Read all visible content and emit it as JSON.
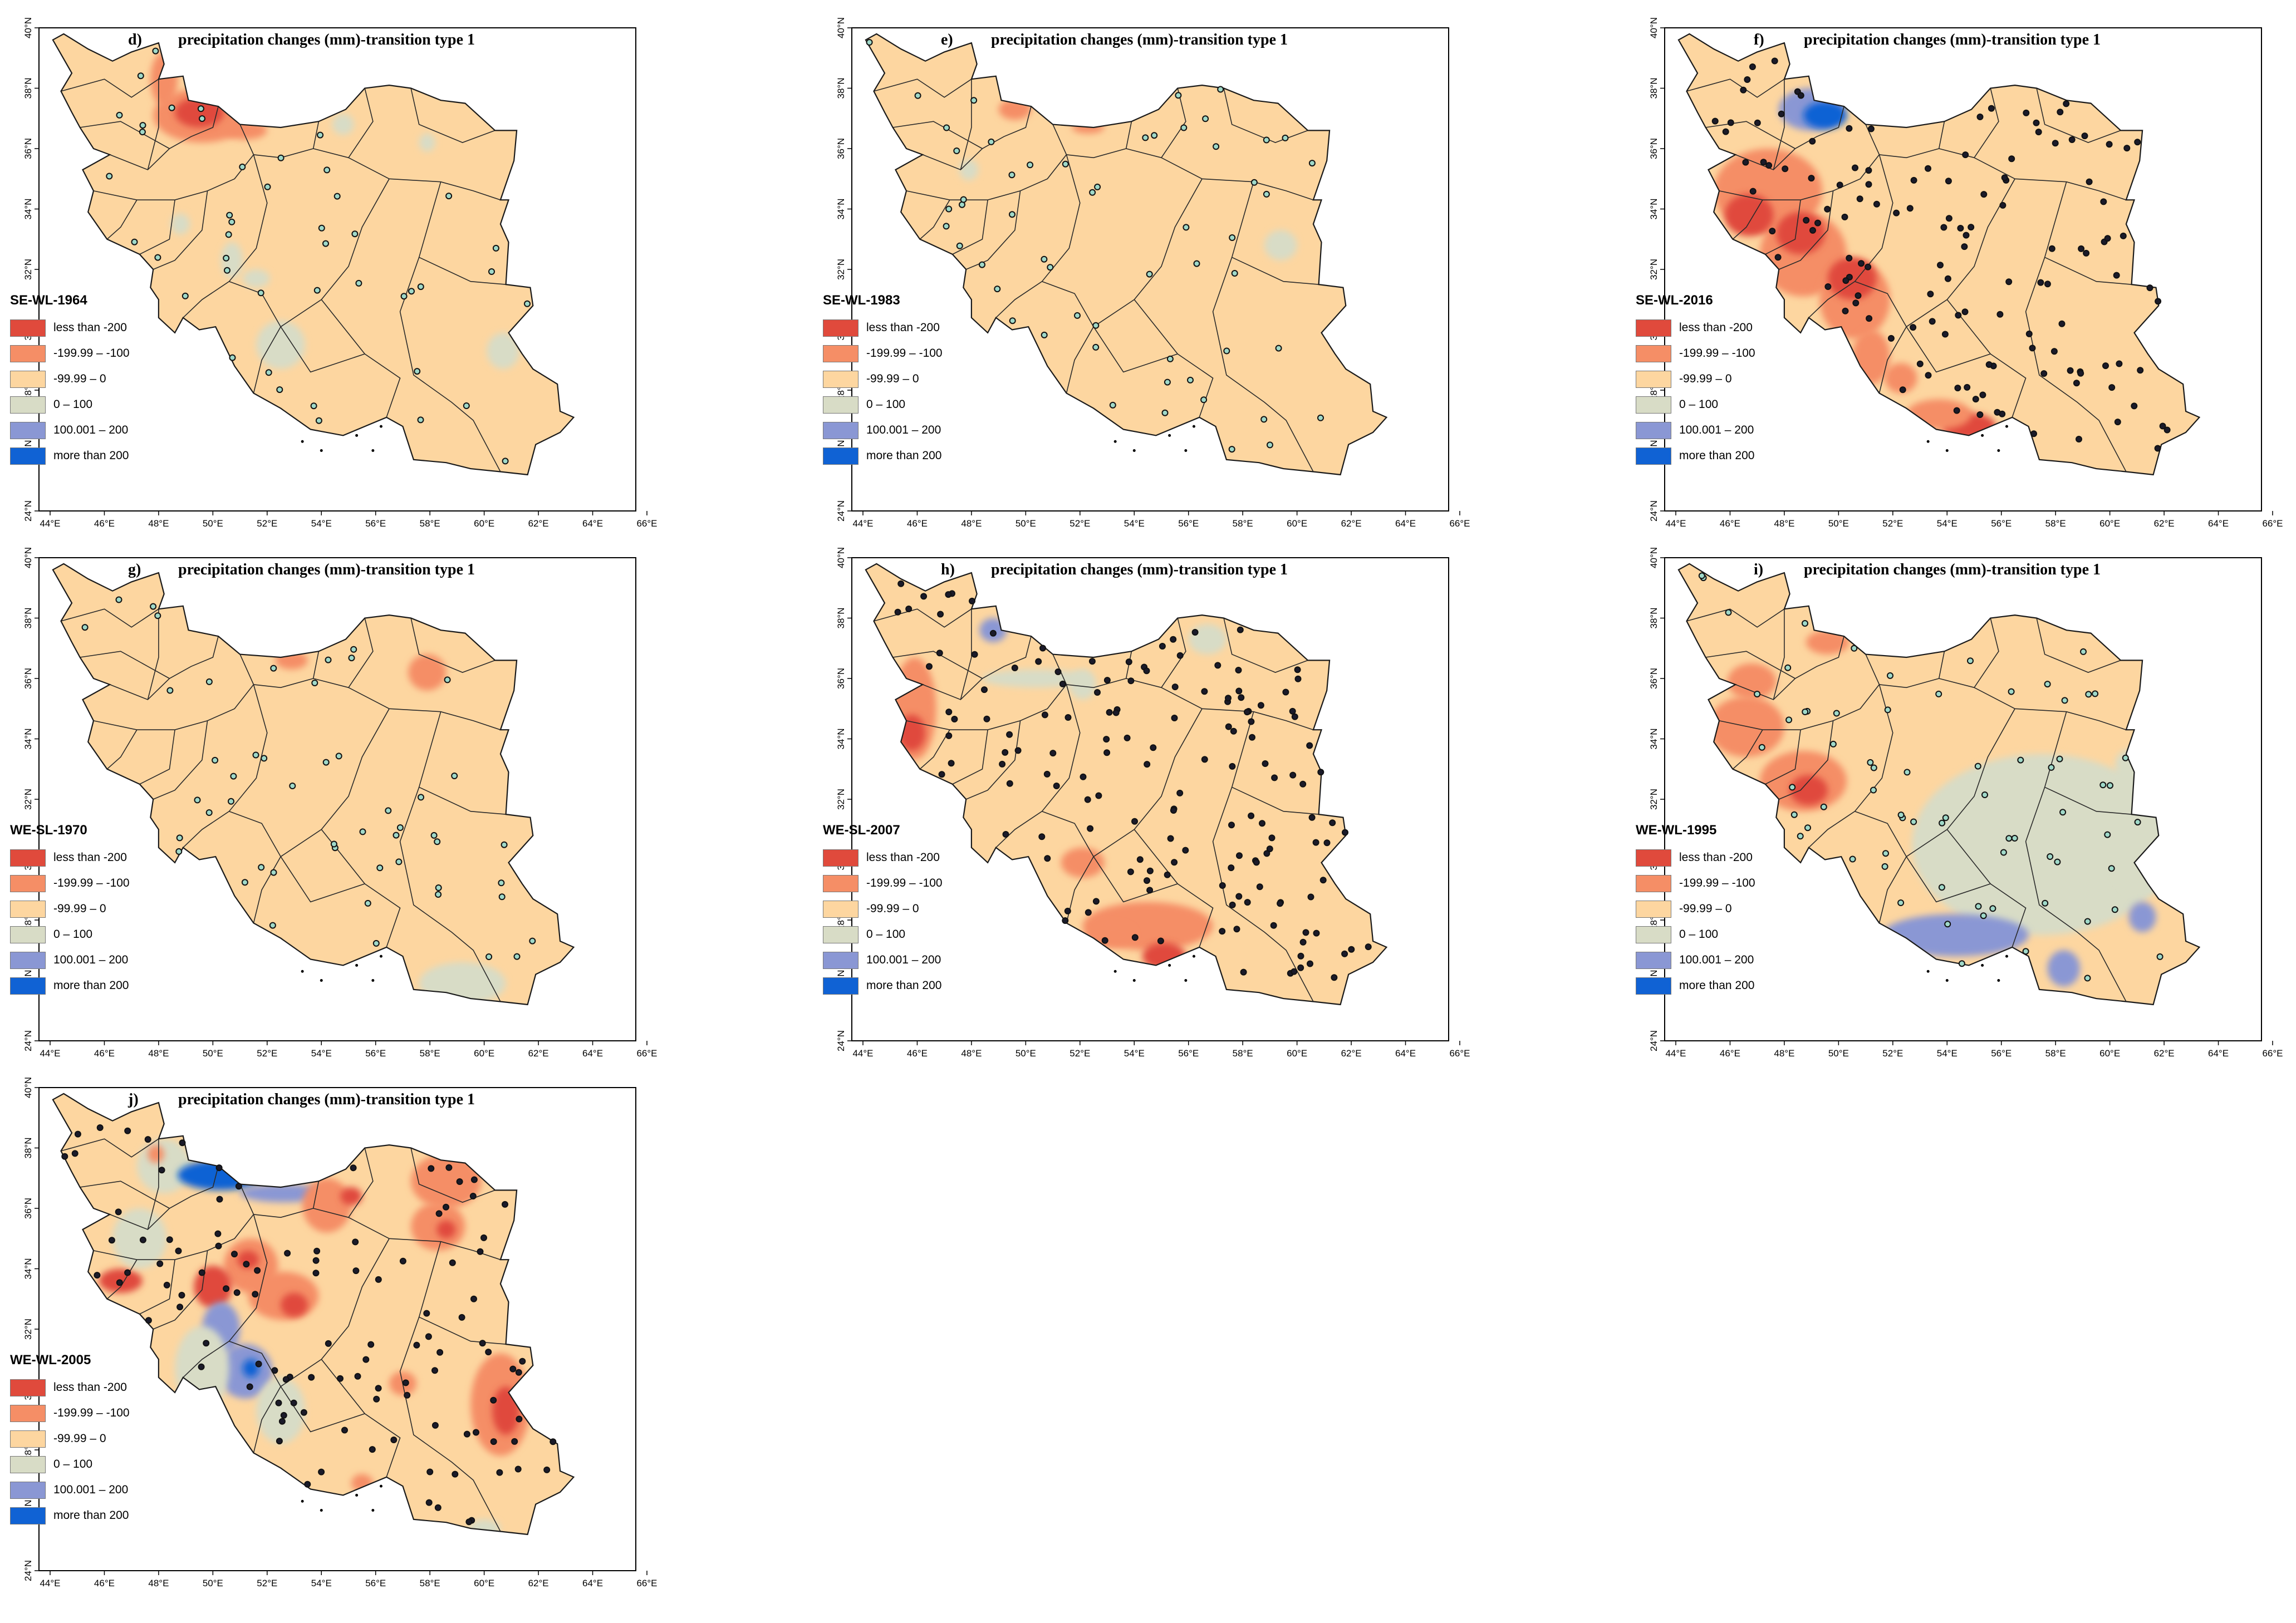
{
  "classes": [
    {
      "label": "less than -200",
      "color": "#e04a3c"
    },
    {
      "label": "-199.99 – -100",
      "color": "#f58e66"
    },
    {
      "label": "-99.99 – 0",
      "color": "#fdd6a0"
    },
    {
      "label": "0 – 100",
      "color": "#d8dcc6"
    },
    {
      "label": "100.001 – 200",
      "color": "#8a97d4"
    },
    {
      "label": "more than 200",
      "color": "#1062d4"
    }
  ],
  "lon_ticks": [
    "44°E",
    "46°E",
    "48°E",
    "50°E",
    "52°E",
    "54°E",
    "56°E",
    "58°E",
    "60°E",
    "62°E",
    "64°E",
    "66°E"
  ],
  "lat_ticks": [
    "24°N",
    "26°N",
    "28°N",
    "30°N",
    "32°N",
    "34°N",
    "36°N",
    "38°N",
    "40°N"
  ],
  "panels": [
    {
      "letter": "d)",
      "title": "precipitation changes (mm)-transition type 1",
      "event": "SE-WL-1964"
    },
    {
      "letter": "e)",
      "title": "precipitation changes (mm)-transition type 1",
      "event": "SE-WL-1983"
    },
    {
      "letter": "f)",
      "title": "precipitation changes (mm)-transition type 1",
      "event": "SE-WL-2016"
    },
    {
      "letter": "g)",
      "title": "precipitation changes (mm)-transition type 1",
      "event": "WE-SL-1970"
    },
    {
      "letter": "h)",
      "title": "precipitation changes (mm)-transition type 1",
      "event": "WE-SL-2007"
    },
    {
      "letter": "i)",
      "title": "precipitation changes (mm)-transition type 1",
      "event": "WE-WL-1995"
    },
    {
      "letter": "j)",
      "title": "precipitation changes (mm)-transition type 1",
      "event": "WE-WL-2005"
    }
  ]
}
